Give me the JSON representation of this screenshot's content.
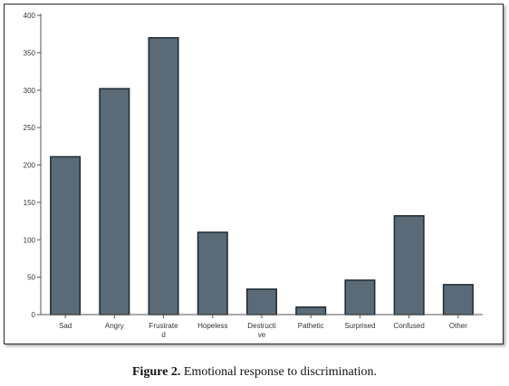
{
  "figure": {
    "caption_label": "Figure 2.",
    "caption_text": " Emotional response to discrimination."
  },
  "colors": {
    "bar_fill": "#5a6a76",
    "bar_stroke": "#1c2a33",
    "axis": "#555555"
  },
  "chart_data": {
    "type": "bar",
    "categories": [
      "Sad",
      "Angry",
      "Frustrated",
      "Hopeless",
      "Destructive",
      "Pathetic",
      "Surprised",
      "Confused",
      "Other"
    ],
    "category_label_lines": [
      [
        "Sad"
      ],
      [
        "Angry"
      ],
      [
        "Frustrate",
        "d"
      ],
      [
        "Hopeless"
      ],
      [
        "Destructi",
        "ve"
      ],
      [
        "Pathetic"
      ],
      [
        "Surprised"
      ],
      [
        "Confused"
      ],
      [
        "Other"
      ]
    ],
    "values": [
      211,
      302,
      370,
      110,
      34,
      10,
      46,
      132,
      40
    ],
    "ylim": [
      0,
      400
    ],
    "yticks": [
      0,
      50,
      100,
      150,
      200,
      250,
      300,
      350,
      400
    ],
    "title": "",
    "xlabel": "",
    "ylabel": "",
    "grid": false,
    "legend": "none"
  }
}
